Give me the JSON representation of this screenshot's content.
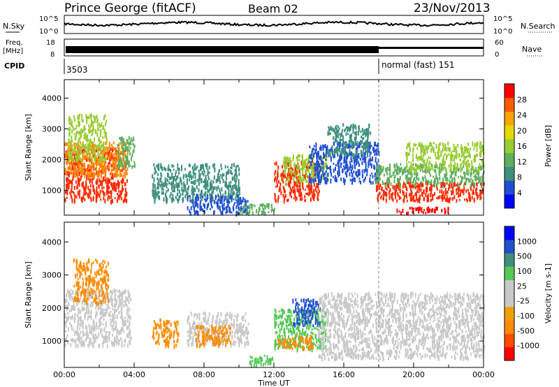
{
  "header": {
    "station": "Prince George (fitACF)",
    "beam": "Beam 02",
    "date": "23/Nov/2013"
  },
  "noise_panel": {
    "left_label": "N.Sky",
    "right_label": "N.Search",
    "left_ticks": [
      "10^5",
      "10^0"
    ],
    "right_ticks": [
      "10^5",
      "10^0"
    ]
  },
  "freq_panel": {
    "left_label_1": "Freq.",
    "left_label_2": "[MHz]",
    "right_label": "Nave",
    "left_ticks": [
      "18",
      "8"
    ],
    "right_ticks": [
      "60",
      "0"
    ]
  },
  "cpid_panel": {
    "label": "CPID",
    "segments": [
      {
        "text": "3503",
        "start_hour": 0
      },
      {
        "text": "normal (fast) 151",
        "start_hour": 18
      }
    ]
  },
  "chart_data": [
    {
      "type": "heatmap",
      "name": "power",
      "ylabel": "Slant Range [km]",
      "ylim": [
        200,
        4600
      ],
      "yticks": [
        1000,
        2000,
        3000,
        4000
      ],
      "xlim": [
        0,
        24
      ],
      "colorbar": {
        "label": "Power [dB]",
        "ticks": [
          "28",
          "24",
          "20",
          "16",
          "12",
          "8",
          "4"
        ],
        "colors": [
          "#0000ff",
          "#2050d0",
          "#3f8f7f",
          "#5fae5f",
          "#99cc33",
          "#e5d800",
          "#ffa500",
          "#ff5a00",
          "#ff0000"
        ]
      },
      "regions": [
        {
          "t0": 0.0,
          "t1": 3.6,
          "r0": 700,
          "r1": 2400,
          "color": "#ff2a00"
        },
        {
          "t0": 0.0,
          "t1": 3.6,
          "r0": 1500,
          "r1": 2600,
          "color": "#ff8c00"
        },
        {
          "t0": 0.2,
          "t1": 2.4,
          "r0": 2000,
          "r1": 3500,
          "color": "#99cc33"
        },
        {
          "t0": 3.0,
          "t1": 4.0,
          "r0": 1800,
          "r1": 2800,
          "color": "#5fae5f"
        },
        {
          "t0": 5.0,
          "t1": 10.0,
          "r0": 700,
          "r1": 1900,
          "color": "#3f8f7f"
        },
        {
          "t0": 7.0,
          "t1": 10.5,
          "r0": 300,
          "r1": 900,
          "color": "#2050d0"
        },
        {
          "t0": 10.0,
          "t1": 12.0,
          "r0": 300,
          "r1": 600,
          "color": "#5fae5f"
        },
        {
          "t0": 12.0,
          "t1": 14.6,
          "r0": 700,
          "r1": 2000,
          "color": "#ff2a00"
        },
        {
          "t0": 12.5,
          "t1": 15.0,
          "r0": 1300,
          "r1": 2200,
          "color": "#99cc33"
        },
        {
          "t0": 14.0,
          "t1": 18.0,
          "r0": 1300,
          "r1": 2600,
          "color": "#2050d0"
        },
        {
          "t0": 15.0,
          "t1": 17.5,
          "r0": 2200,
          "r1": 3200,
          "color": "#3f8f7f"
        },
        {
          "t0": 17.8,
          "t1": 24.0,
          "r0": 1200,
          "r1": 1900,
          "color": "#5fae5f"
        },
        {
          "t0": 17.8,
          "t1": 24.0,
          "r0": 700,
          "r1": 1300,
          "color": "#ff2a00"
        },
        {
          "t0": 19.0,
          "t1": 22.0,
          "r0": 300,
          "r1": 500,
          "color": "#ff0000"
        },
        {
          "t0": 19.5,
          "t1": 24.0,
          "r0": 1700,
          "r1": 2600,
          "color": "#99cc33"
        }
      ]
    },
    {
      "type": "heatmap",
      "name": "velocity",
      "ylabel": "Slant Range [km]",
      "xlabel": "Time UT",
      "ylim": [
        200,
        4600
      ],
      "yticks": [
        1000,
        2000,
        3000,
        4000
      ],
      "xlim": [
        0,
        24
      ],
      "xticks": [
        "00:00",
        "04:00",
        "08:00",
        "12:00",
        "16:00",
        "20:00",
        "00:00"
      ],
      "colorbar": {
        "label": "Velocity [m s-1]",
        "ticks": [
          "1000",
          "500",
          "100",
          "25",
          "-25",
          "-100",
          "-500",
          "-1000"
        ],
        "colors": [
          "#ff0000",
          "#ff4a00",
          "#ff8c00",
          "#f0a000",
          "#c8c8c8",
          "#c8c8c8",
          "#55c855",
          "#3f8f7f",
          "#2050d0",
          "#0000ff"
        ]
      },
      "regions": [
        {
          "t0": 0.0,
          "t1": 3.8,
          "r0": 900,
          "r1": 2600,
          "color": "#c8c8c8"
        },
        {
          "t0": 0.5,
          "t1": 2.5,
          "r0": 2200,
          "r1": 3500,
          "color": "#ff8c00"
        },
        {
          "t0": 5.0,
          "t1": 6.5,
          "r0": 900,
          "r1": 1700,
          "color": "#ff8c00"
        },
        {
          "t0": 7.0,
          "t1": 10.5,
          "r0": 900,
          "r1": 1900,
          "color": "#c8c8c8"
        },
        {
          "t0": 7.5,
          "t1": 9.5,
          "r0": 900,
          "r1": 1500,
          "color": "#ff8c00"
        },
        {
          "t0": 10.5,
          "t1": 12.0,
          "r0": 300,
          "r1": 600,
          "color": "#55c855"
        },
        {
          "t0": 12.0,
          "t1": 15.0,
          "r0": 800,
          "r1": 2000,
          "color": "#55c855"
        },
        {
          "t0": 13.0,
          "t1": 14.6,
          "r0": 1500,
          "r1": 2300,
          "color": "#2050d0"
        },
        {
          "t0": 12.2,
          "t1": 14.2,
          "r0": 800,
          "r1": 1200,
          "color": "#ff8c00"
        },
        {
          "t0": 14.5,
          "t1": 24.0,
          "r0": 500,
          "r1": 2500,
          "color": "#c8c8c8"
        }
      ]
    }
  ]
}
